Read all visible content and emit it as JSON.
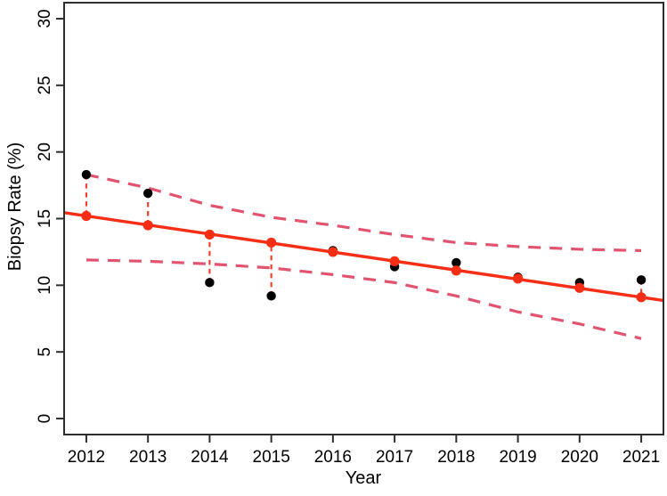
{
  "figure": {
    "background": "#ffffff",
    "frame_color": "#2d2d2d",
    "text_color": "#000000"
  },
  "chart_data": {
    "type": "line",
    "title": "",
    "xlabel": "Year",
    "ylabel": "Biopsy Rate (%)",
    "x": [
      2012,
      2013,
      2014,
      2015,
      2016,
      2017,
      2018,
      2019,
      2020,
      2021
    ],
    "x_tick_labels": [
      "2012",
      "2013",
      "2014",
      "2015",
      "2016",
      "2017",
      "2018",
      "2019",
      "2020",
      "2021"
    ],
    "y_ticks": [
      0,
      5,
      10,
      15,
      20,
      25,
      30
    ],
    "y_tick_labels": [
      "0",
      "5",
      "10",
      "15",
      "20",
      "25",
      "30"
    ],
    "xlim": [
      2011.64,
      2021.36
    ],
    "ylim": [
      -1.2,
      31.2
    ],
    "grid": false,
    "legend_position": "none",
    "series": [
      {
        "name": "observed-biopsy-rate",
        "style": "scatter",
        "marker": "filled-circle",
        "color": "#000000",
        "values": [
          18.3,
          16.9,
          10.2,
          9.2,
          12.6,
          11.4,
          11.7,
          10.6,
          10.2,
          10.4
        ]
      },
      {
        "name": "fitted-trend",
        "style": "solid-line-with-markers",
        "marker": "filled-circle",
        "color": "#f62e15",
        "extends_to_plot_edges": true,
        "values": [
          15.2,
          14.5,
          13.8,
          13.2,
          12.5,
          11.8,
          11.1,
          10.5,
          9.8,
          9.1
        ]
      },
      {
        "name": "upper-confidence-band",
        "style": "dashed-line",
        "color": "#e2536f",
        "values": [
          18.3,
          17.3,
          16.0,
          15.1,
          14.5,
          13.8,
          13.2,
          12.9,
          12.7,
          12.6
        ]
      },
      {
        "name": "lower-confidence-band",
        "style": "dashed-line",
        "color": "#e2536f",
        "values": [
          11.9,
          11.8,
          11.6,
          11.3,
          10.8,
          10.2,
          9.2,
          8.0,
          7.1,
          6.0
        ]
      }
    ],
    "residual_connectors": {
      "style": "dashed-vertical",
      "color": "#f6402c",
      "connects": "observed-biopsy-rate to fitted-trend at each year"
    }
  }
}
